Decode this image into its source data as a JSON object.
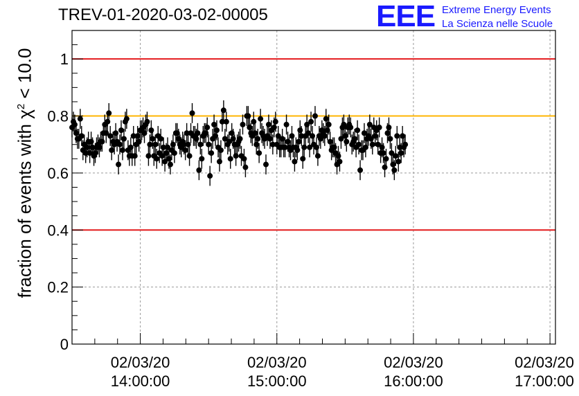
{
  "title": "TREV-01-2020-03-02-00005",
  "logo": {
    "mark": "EEE",
    "line1": "Extreme Energy Events",
    "line2": "La Scienza nelle Scuole"
  },
  "ylabel": {
    "pre": "fraction of events with ",
    "symbol": "χ",
    "sup": "2",
    "post": " < 10.0"
  },
  "chart_data": {
    "type": "scatter",
    "xlim_hours": [
      13.5,
      17.04
    ],
    "ylim": [
      0,
      1.1
    ],
    "yticks": [
      {
        "value": 0,
        "label": "0"
      },
      {
        "value": 0.2,
        "label": "0.2"
      },
      {
        "value": 0.4,
        "label": "0.4"
      },
      {
        "value": 0.6,
        "label": "0.6"
      },
      {
        "value": 0.8,
        "label": "0.8"
      },
      {
        "value": 1.0,
        "label": "1"
      }
    ],
    "xticks": [
      {
        "hour": 14,
        "date": "02/03/20",
        "time": "14:00:00"
      },
      {
        "hour": 15,
        "date": "02/03/20",
        "time": "15:00:00"
      },
      {
        "hour": 16,
        "date": "02/03/20",
        "time": "16:00:00"
      },
      {
        "hour": 17,
        "date": "02/03/20",
        "time": "17:00:00"
      }
    ],
    "grid": true,
    "reference_lines": [
      {
        "value": 1.0,
        "color": "#e41a1c"
      },
      {
        "value": 0.8,
        "color": "#ffb400"
      },
      {
        "value": 0.4,
        "color": "#e41a1c"
      }
    ],
    "error": 0.035,
    "series": [
      {
        "color": "#000000",
        "x_start_hour": 13.5,
        "x_step_hour": 0.01,
        "y": [
          0.76,
          0.78,
          0.77,
          0.74,
          0.72,
          0.72,
          0.79,
          0.73,
          0.68,
          0.7,
          0.67,
          0.69,
          0.71,
          0.67,
          0.71,
          0.69,
          0.66,
          0.67,
          0.69,
          0.7,
          0.69,
          0.71,
          0.71,
          0.74,
          0.77,
          0.74,
          0.78,
          0.81,
          0.73,
          0.68,
          0.71,
          0.7,
          0.74,
          0.71,
          0.63,
          0.7,
          0.75,
          0.68,
          0.72,
          0.78,
          0.79,
          0.68,
          0.66,
          0.69,
          0.66,
          0.73,
          0.66,
          0.7,
          0.73,
          0.71,
          0.75,
          0.75,
          0.76,
          0.74,
          0.77,
          0.78,
          0.66,
          0.7,
          0.75,
          0.72,
          0.66,
          0.7,
          0.65,
          0.73,
          0.67,
          0.72,
          0.66,
          0.69,
          0.64,
          0.67,
          0.69,
          0.65,
          0.63,
          0.68,
          0.7,
          0.67,
          0.74,
          0.74,
          0.72,
          0.7,
          0.69,
          0.71,
          0.7,
          0.68,
          0.74,
          0.7,
          0.66,
          0.74,
          0.81,
          0.73,
          0.73,
          0.72,
          0.74,
          0.61,
          0.7,
          0.65,
          0.73,
          0.74,
          0.74,
          0.76,
          0.7,
          0.59,
          0.67,
          0.72,
          0.77,
          0.73,
          0.75,
          0.69,
          0.64,
          0.68,
          0.78,
          0.82,
          0.72,
          0.78,
          0.7,
          0.71,
          0.65,
          0.74,
          0.72,
          0.7,
          0.66,
          0.7,
          0.71,
          0.72,
          0.66,
          0.77,
          0.65,
          0.62,
          0.8,
          0.8,
          0.76,
          0.74,
          0.73,
          0.78,
          0.74,
          0.7,
          0.72,
          0.67,
          0.79,
          0.74,
          0.73,
          0.72,
          0.63,
          0.73,
          0.77,
          0.72,
          0.75,
          0.7,
          0.76,
          0.78,
          0.7,
          0.73,
          0.69,
          0.69,
          0.72,
          0.69,
          0.69,
          0.77,
          0.71,
          0.69,
          0.68,
          0.73,
          0.69,
          0.64,
          0.69,
          0.68,
          0.71,
          0.75,
          0.73,
          0.65,
          0.69,
          0.73,
          0.77,
          0.74,
          0.69,
          0.78,
          0.73,
          0.7,
          0.8,
          0.69,
          0.66,
          0.73,
          0.72,
          0.75,
          0.74,
          0.73,
          0.79,
          0.75,
          0.77,
          0.71,
          0.68,
          0.69,
          0.69,
          0.67,
          0.63,
          0.66,
          0.64,
          0.72,
          0.76,
          0.77,
          0.73,
          0.71,
          0.76,
          0.77,
          0.76,
          0.7,
          0.71,
          0.72,
          0.69,
          0.75,
          0.7,
          0.61,
          0.68,
          0.68,
          0.74,
          0.69,
          0.72,
          0.73,
          0.77,
          0.72,
          0.7,
          0.76,
          0.73,
          0.75,
          0.7,
          0.76,
          0.67,
          0.69,
          0.67,
          0.62,
          0.65,
          0.74,
          0.76,
          0.72,
          0.67,
          0.63,
          0.61,
          0.66,
          0.73,
          0.64,
          0.69,
          0.67,
          0.73,
          0.69,
          0.7
        ]
      }
    ]
  }
}
